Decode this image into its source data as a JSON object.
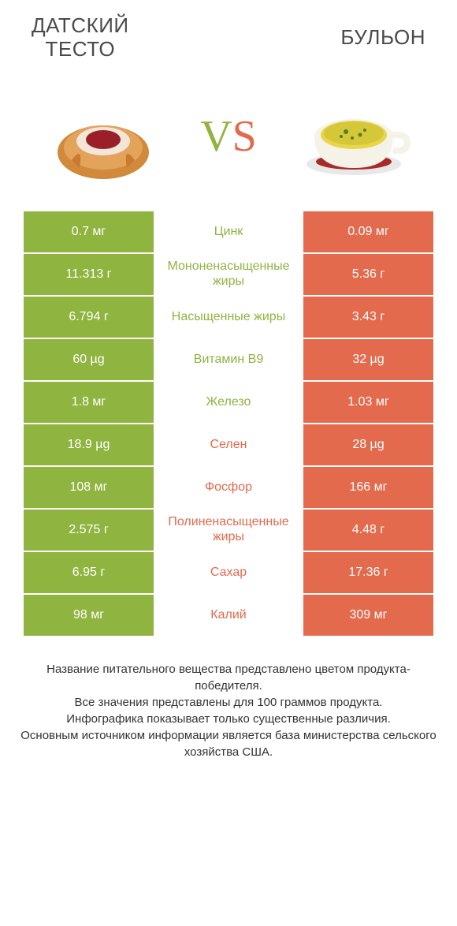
{
  "colors": {
    "green": "#8fb440",
    "orange": "#e36a4d",
    "text": "#4a4a4a",
    "footer_text": "#333333",
    "background": "#ffffff"
  },
  "typography": {
    "title_fontsize": 26,
    "vs_fontsize": 56,
    "cell_fontsize": 16,
    "footer_fontsize": 15
  },
  "header": {
    "left_title_line1": "ДАТСКИЙ",
    "left_title_line2": "ТЕСТО",
    "right_title": "БУЛЬОН"
  },
  "vs": {
    "v": "V",
    "s": "S"
  },
  "rows": [
    {
      "left": "0.7 мг",
      "mid": "Цинк",
      "right": "0.09 мг",
      "winner": "left"
    },
    {
      "left": "11.313 г",
      "mid": "Мононенасыщенные жиры",
      "right": "5.36 г",
      "winner": "left"
    },
    {
      "left": "6.794 г",
      "mid": "Насыщенные жиры",
      "right": "3.43 г",
      "winner": "left"
    },
    {
      "left": "60 µg",
      "mid": "Витамин B9",
      "right": "32 µg",
      "winner": "left"
    },
    {
      "left": "1.8 мг",
      "mid": "Железо",
      "right": "1.03 мг",
      "winner": "left"
    },
    {
      "left": "18.9 µg",
      "mid": "Селен",
      "right": "28 µg",
      "winner": "right"
    },
    {
      "left": "108 мг",
      "mid": "Фосфор",
      "right": "166 мг",
      "winner": "right"
    },
    {
      "left": "2.575 г",
      "mid": "Полиненасыщенные жиры",
      "right": "4.48 г",
      "winner": "right"
    },
    {
      "left": "6.95 г",
      "mid": "Сахар",
      "right": "17.36 г",
      "winner": "right"
    },
    {
      "left": "98 мг",
      "mid": "Калий",
      "right": "309 мг",
      "winner": "right"
    }
  ],
  "footer": {
    "line1": "Название питательного вещества представлено цветом продукта-победителя.",
    "line2": "Все значения представлены для 100 граммов продукта.",
    "line3": "Инфографика показывает только существенные различия.",
    "line4": "Основным источником информации является база министерства сельского хозяйства США."
  }
}
